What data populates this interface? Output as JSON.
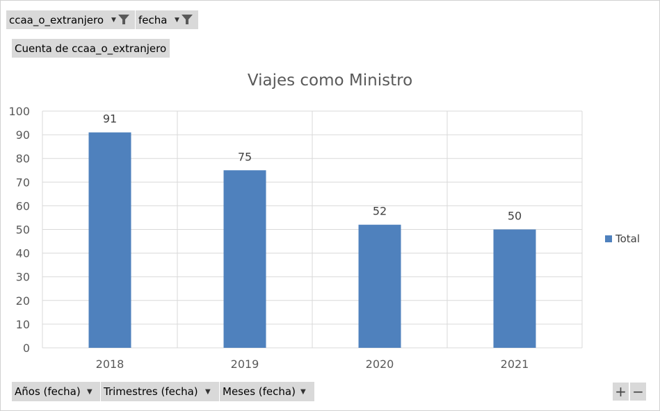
{
  "filters": [
    {
      "label": "ccaa_o_extranjero",
      "icon": "filter-icon"
    },
    {
      "label": "fecha",
      "icon": "filter-icon"
    }
  ],
  "value_field": {
    "label": "Cuenta de ccaa_o_extranjero"
  },
  "axis_fields": [
    {
      "label": "Años (fecha)"
    },
    {
      "label": "Trimestres (fecha)"
    },
    {
      "label": "Meses (fecha)"
    }
  ],
  "zoom_controls": {
    "expand": "+",
    "collapse": "−"
  },
  "colors": {
    "bar": "#4f81bd",
    "grid": "#d9d9d9",
    "text": "#595959"
  },
  "chart_data": {
    "type": "bar",
    "title": "Viajes como Ministro",
    "categories": [
      "2018",
      "2019",
      "2020",
      "2021"
    ],
    "series": [
      {
        "name": "Total",
        "values": [
          91,
          75,
          52,
          50
        ]
      }
    ],
    "ylim": [
      0,
      100
    ],
    "yticks": [
      0,
      10,
      20,
      30,
      40,
      50,
      60,
      70,
      80,
      90,
      100
    ],
    "data_labels": true,
    "grid": true,
    "legend": "right"
  }
}
